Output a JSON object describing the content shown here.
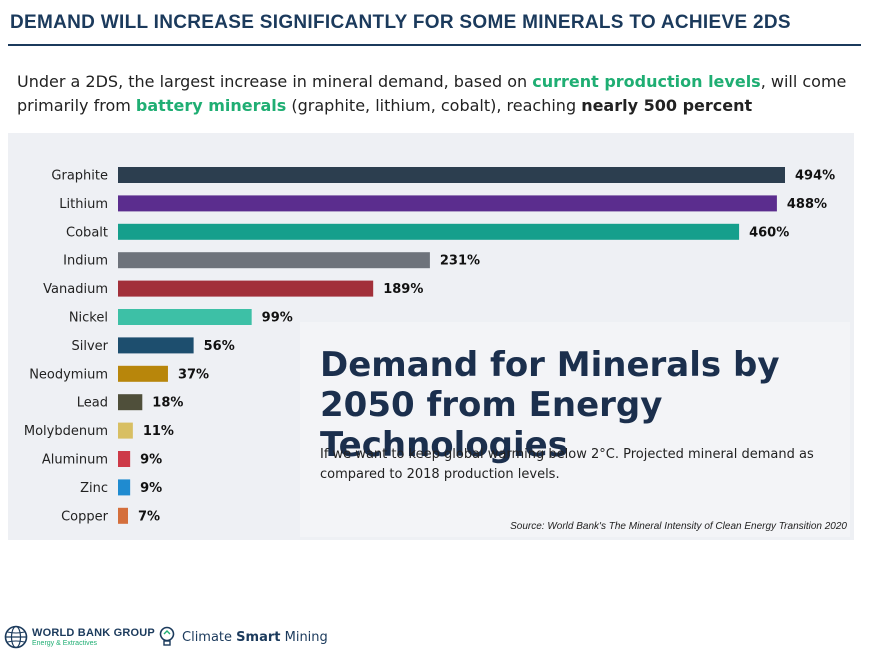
{
  "header": {
    "title": "DEMAND WILL INCREASE SIGNIFICANTLY FOR SOME MINERALS TO ACHIEVE 2DS",
    "subtitle": {
      "part1": "Under a 2DS, the largest increase in mineral demand, based on ",
      "green1": "current production levels",
      "part2": ", will come primarily from ",
      "green2": "battery minerals",
      "part3": " (graphite, lithium, cobalt), reaching ",
      "bold": "nearly 500 percent"
    }
  },
  "chart_data": {
    "type": "bar",
    "orientation": "horizontal",
    "title": "Demand for Minerals by 2050 from Energy Technologies",
    "description": "If we want to keep global warming below 2°C. Projected mineral demand as compared to 2018 production levels.",
    "source": "Source: World Bank's The Mineral Intensity of Clean Energy Transition 2020",
    "categories": [
      "Graphite",
      "Lithium",
      "Cobalt",
      "Indium",
      "Vanadium",
      "Nickel",
      "Silver",
      "Neodymium",
      "Lead",
      "Molybdenum",
      "Aluminum",
      "Zinc",
      "Copper"
    ],
    "values": [
      494,
      488,
      460,
      231,
      189,
      99,
      56,
      37,
      18,
      11,
      9,
      9,
      7
    ],
    "value_labels": [
      "494%",
      "488%",
      "460%",
      "231%",
      "189%",
      "99%",
      "56%",
      "37%",
      "18%",
      "11%",
      "9%",
      "9%",
      "7%"
    ],
    "colors": [
      "#2c3e4f",
      "#5b2d8e",
      "#159f8c",
      "#6e737b",
      "#a2303a",
      "#3dc0a6",
      "#1d4e6e",
      "#b8860b",
      "#4f4f3a",
      "#d8bf63",
      "#cd3a48",
      "#1f8bd0",
      "#d46f3c"
    ],
    "xlim": [
      0,
      494
    ]
  },
  "footer": {
    "logo1_name": "WORLD BANK GROUP",
    "logo1_sub": "Energy & Extractives",
    "logo2_part1": "Climate ",
    "logo2_part2": "Smart",
    "logo2_part3": " Mining"
  }
}
